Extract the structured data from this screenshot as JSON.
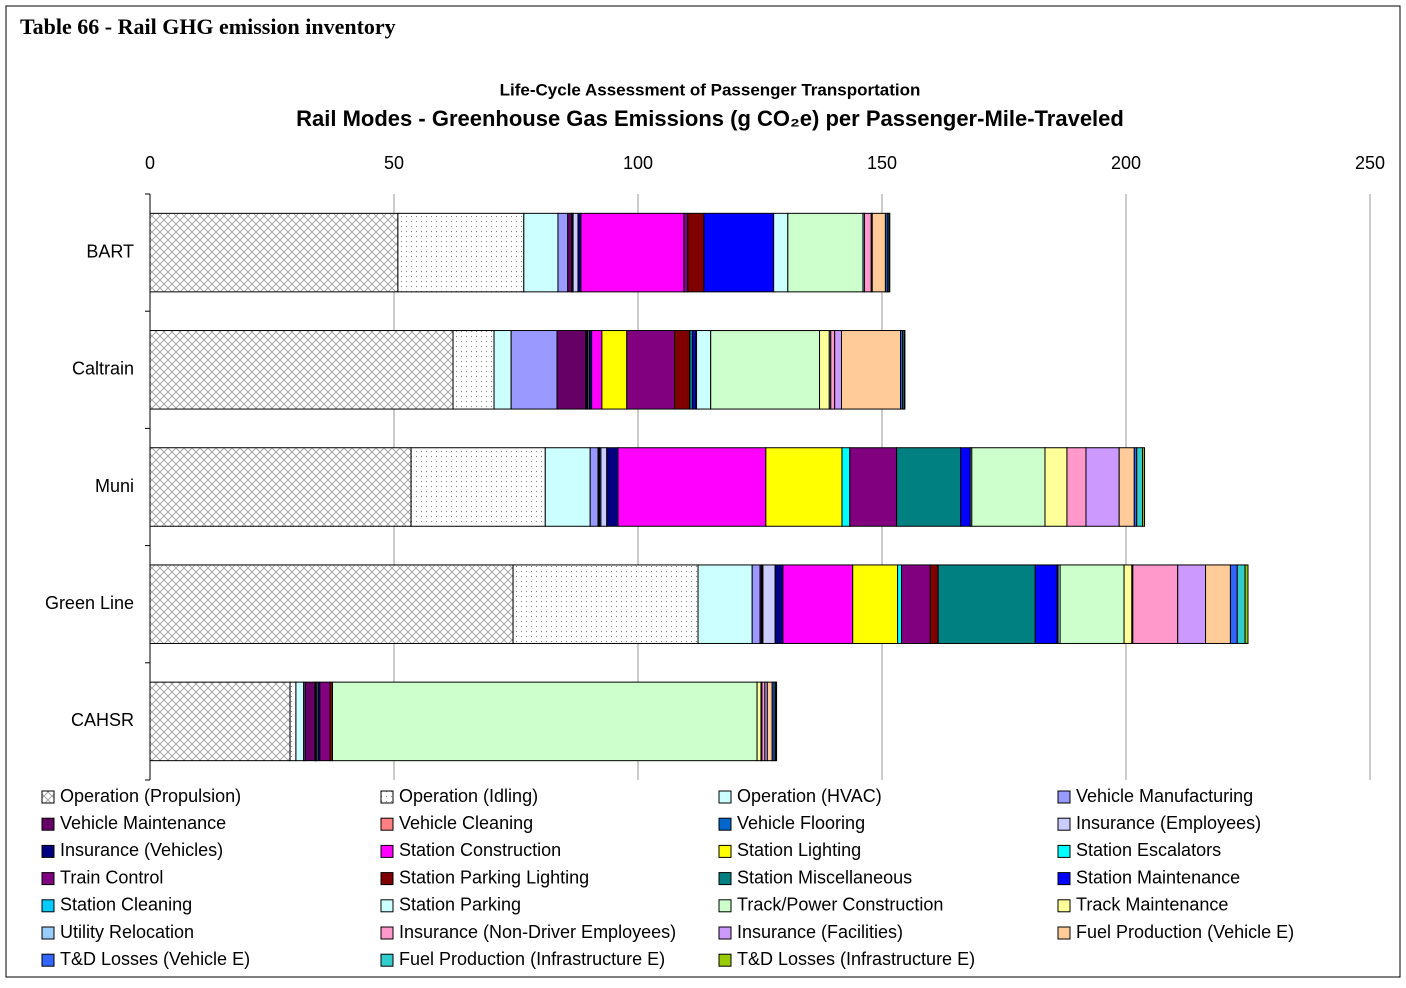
{
  "header": "Table 66 - Rail GHG emission inventory",
  "chart_data": {
    "type": "stacked_barh",
    "subtitle": "Life-Cycle Assessment of Passenger Transportation",
    "title": "Rail Modes - Greenhouse Gas Emissions (g CO₂e) per Passenger-Mile-Traveled",
    "categories": [
      "BART",
      "Caltrain",
      "Muni",
      "Green Line",
      "CAHSR"
    ],
    "xlim": [
      0,
      250
    ],
    "xticks": [
      0,
      50,
      100,
      150,
      200,
      250
    ],
    "grid": true,
    "legend": "bottom",
    "series": [
      {
        "name": "Operation (Propulsion)",
        "color": "#ffffff",
        "pattern": "crosshatch",
        "values": [
          50.8,
          62.1,
          53.5,
          74.4,
          28.7
        ]
      },
      {
        "name": "Operation (Idling)",
        "color": "#ffffff",
        "pattern": "dots",
        "values": [
          25.8,
          8.4,
          27.5,
          37.9,
          1.2
        ]
      },
      {
        "name": "Operation (HVAC)",
        "color": "#ccffff",
        "values": [
          7.0,
          3.5,
          9.2,
          11.1,
          1.6
        ]
      },
      {
        "name": "Vehicle Manufacturing",
        "color": "#9999ff",
        "values": [
          2.0,
          9.4,
          1.6,
          1.6,
          0.3
        ]
      },
      {
        "name": "Vehicle Maintenance",
        "color": "#660066",
        "values": [
          0.8,
          5.9,
          0.2,
          0.3,
          2.0
        ]
      },
      {
        "name": "Vehicle Cleaning",
        "color": "#ff8080",
        "values": [
          0.1,
          0.2,
          0.1,
          0.1,
          0.1
        ]
      },
      {
        "name": "Vehicle Flooring",
        "color": "#0066cc",
        "values": [
          0.2,
          0.2,
          0.3,
          0.2,
          0.2
        ]
      },
      {
        "name": "Insurance (Employees)",
        "color": "#ccccff",
        "values": [
          1.0,
          0.3,
          1.2,
          2.5,
          0.3
        ]
      },
      {
        "name": "Insurance (Vehicles)",
        "color": "#000080",
        "values": [
          0.6,
          0.5,
          2.3,
          1.6,
          0.4
        ]
      },
      {
        "name": "Station Construction",
        "color": "#ff00ff",
        "values": [
          21.1,
          2.1,
          30.3,
          14.3,
          0
        ]
      },
      {
        "name": "Station Lighting",
        "color": "#ffff00",
        "values": [
          0,
          5.1,
          15.6,
          9.2,
          0
        ]
      },
      {
        "name": "Station Escalators",
        "color": "#00ffff",
        "values": [
          0,
          0,
          1.6,
          0.8,
          0
        ]
      },
      {
        "name": "Train Control",
        "color": "#800080",
        "values": [
          0.8,
          9.8,
          9.6,
          5.9,
          2.1
        ]
      },
      {
        "name": "Station Parking Lighting",
        "color": "#800000",
        "values": [
          3.3,
          3.1,
          0,
          1.6,
          0.5
        ]
      },
      {
        "name": "Station Miscellaneous",
        "color": "#008080",
        "values": [
          0,
          0.6,
          13.1,
          19.9,
          0
        ]
      },
      {
        "name": "Station Maintenance",
        "color": "#0000ff",
        "values": [
          14.3,
          0.6,
          2.0,
          4.5,
          0
        ]
      },
      {
        "name": "Station Cleaning",
        "color": "#00ccff",
        "values": [
          0,
          0.2,
          0,
          0.2,
          0
        ]
      },
      {
        "name": "Station Parking",
        "color": "#ccffff",
        "values": [
          2.9,
          2.9,
          0.3,
          0.4,
          0
        ]
      },
      {
        "name": "Track/Power Construction",
        "color": "#ccffcc",
        "values": [
          15.4,
          22.3,
          15.0,
          13.1,
          87.0
        ]
      },
      {
        "name": "Track Maintenance",
        "color": "#ffff99",
        "values": [
          0,
          2.0,
          4.5,
          1.6,
          0.8
        ]
      },
      {
        "name": "Utility Relocation",
        "color": "#99ccff",
        "values": [
          0.3,
          0.3,
          0,
          0.2,
          0.2
        ]
      },
      {
        "name": "Insurance (Non-Driver Employees)",
        "color": "#ff99cc",
        "values": [
          1.4,
          0.8,
          3.9,
          9.2,
          0.6
        ]
      },
      {
        "name": "Insurance (Facilities)",
        "color": "#cc99ff",
        "values": [
          0.2,
          1.4,
          6.8,
          5.7,
          0.5
        ]
      },
      {
        "name": "Fuel Production (Vehicle E)",
        "color": "#ffcc99",
        "values": [
          2.7,
          12.1,
          3.1,
          5.1,
          1.0
        ]
      },
      {
        "name": "T&D Losses (Vehicle E)",
        "color": "#3366ff",
        "values": [
          0.4,
          0.4,
          0.5,
          1.4,
          0.4
        ]
      },
      {
        "name": "Fuel Production (Infrastructure E)",
        "color": "#33cccc",
        "values": [
          0.3,
          0.3,
          1.2,
          1.6,
          0.3
        ]
      },
      {
        "name": "T&D Losses (Infrastructure E)",
        "color": "#99cc00",
        "values": [
          0.2,
          0.2,
          0.4,
          0.6,
          0.2
        ]
      }
    ]
  }
}
